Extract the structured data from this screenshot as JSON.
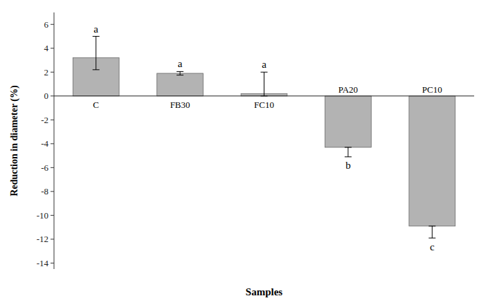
{
  "chart_data": {
    "type": "bar",
    "categories": [
      "C",
      "FB30",
      "FC10",
      "PA20",
      "PC10"
    ],
    "values": [
      3.2,
      1.9,
      0.2,
      -4.3,
      -10.9
    ],
    "errors_pos": [
      1.8,
      0.15,
      1.8,
      0.0,
      0.0
    ],
    "errors_neg": [
      1.0,
      0.15,
      0.2,
      0.8,
      1.0
    ],
    "sig_labels": [
      "a",
      "a",
      "a",
      "b",
      "c"
    ],
    "color": "#b3b3b3",
    "xlabel": "Samples",
    "ylabel": "Reduction in diameter (%)",
    "ylim": [
      -14.5,
      7
    ],
    "yticks": [
      -14,
      -12,
      -10,
      -8,
      -6,
      -4,
      -2,
      0,
      2,
      4,
      6
    ],
    "grid": false
  }
}
